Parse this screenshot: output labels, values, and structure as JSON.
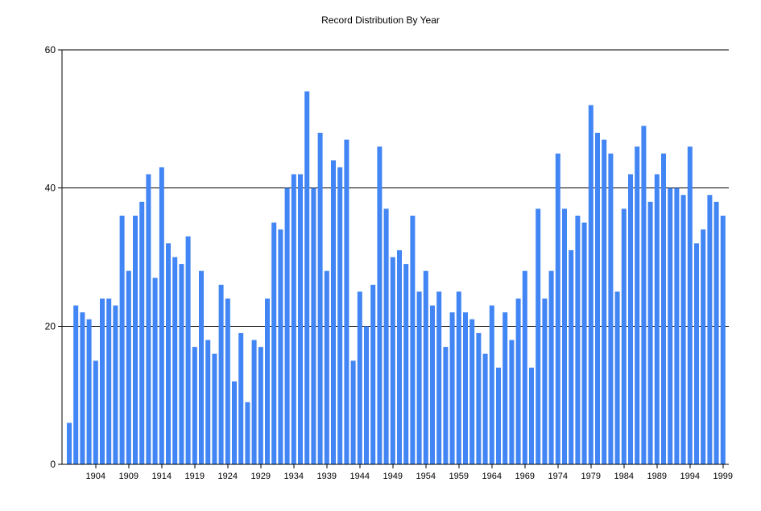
{
  "chart_data": {
    "type": "bar",
    "title": "Record Distribution By Year",
    "xlabel": "",
    "ylabel": "",
    "ylim": [
      0,
      60
    ],
    "y_ticks": [
      0,
      20,
      40,
      60
    ],
    "grid": "horizontal",
    "bar_color": "#4285F4",
    "categories": [
      1900,
      1901,
      1902,
      1903,
      1904,
      1905,
      1906,
      1907,
      1908,
      1909,
      1910,
      1911,
      1912,
      1913,
      1914,
      1915,
      1916,
      1917,
      1918,
      1919,
      1920,
      1921,
      1922,
      1923,
      1924,
      1925,
      1926,
      1927,
      1928,
      1929,
      1930,
      1931,
      1932,
      1933,
      1934,
      1935,
      1936,
      1937,
      1938,
      1939,
      1940,
      1941,
      1942,
      1943,
      1944,
      1945,
      1946,
      1947,
      1948,
      1949,
      1950,
      1951,
      1952,
      1953,
      1954,
      1955,
      1956,
      1957,
      1958,
      1959,
      1960,
      1961,
      1962,
      1963,
      1964,
      1965,
      1966,
      1967,
      1968,
      1969,
      1970,
      1971,
      1972,
      1973,
      1974,
      1975,
      1976,
      1977,
      1978,
      1979,
      1980,
      1981,
      1982,
      1983,
      1984,
      1985,
      1986,
      1987,
      1988,
      1989,
      1990,
      1991,
      1992,
      1993,
      1994,
      1995,
      1996,
      1997,
      1998,
      1999
    ],
    "x_tick_labels": [
      1904,
      1909,
      1914,
      1919,
      1924,
      1929,
      1934,
      1939,
      1944,
      1949,
      1954,
      1959,
      1964,
      1969,
      1974,
      1979,
      1984,
      1989,
      1994,
      1999
    ],
    "values": [
      6,
      23,
      22,
      21,
      15,
      24,
      24,
      23,
      36,
      28,
      36,
      38,
      42,
      27,
      43,
      32,
      30,
      29,
      33,
      17,
      28,
      18,
      16,
      26,
      24,
      12,
      19,
      9,
      18,
      17,
      24,
      35,
      34,
      40,
      42,
      42,
      54,
      40,
      48,
      28,
      44,
      43,
      47,
      15,
      25,
      20,
      26,
      46,
      37,
      30,
      31,
      29,
      36,
      25,
      28,
      23,
      25,
      17,
      22,
      25,
      22,
      21,
      19,
      16,
      23,
      14,
      22,
      18,
      24,
      28,
      14,
      37,
      24,
      28,
      45,
      37,
      31,
      36,
      35,
      52,
      48,
      47,
      45,
      25,
      37,
      42,
      46,
      49,
      38,
      42,
      45,
      40,
      40,
      39,
      46,
      32,
      34,
      39,
      38,
      36
    ]
  }
}
